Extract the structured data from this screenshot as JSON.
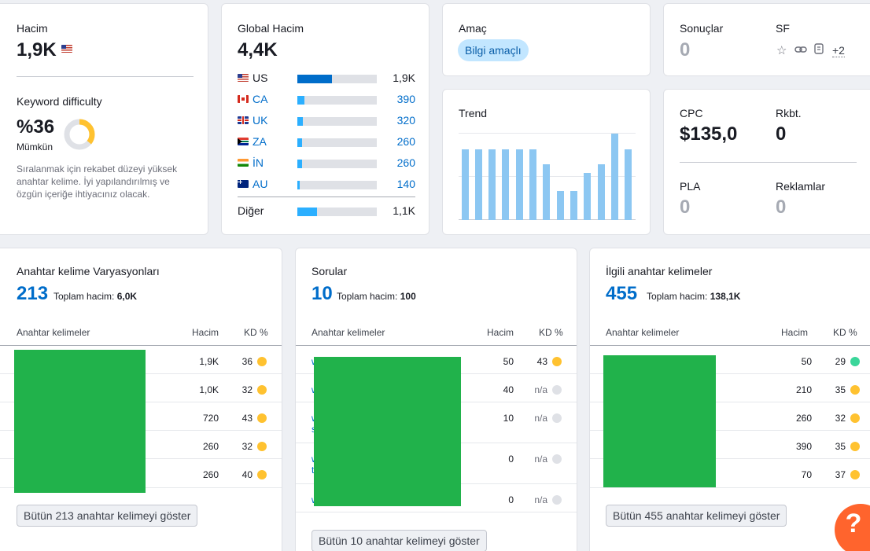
{
  "volume": {
    "label": "Hacim",
    "value": "1,9K",
    "flag": "us-flag-icon"
  },
  "kd": {
    "label": "Keyword difficulty",
    "value": "%36",
    "level": "Mümkün",
    "percent": 36,
    "description": "Sıralanmak için rekabet düzeyi yüksek anahtar kelime. İyi yapılandırılmış ve özgün içeriğe ihtiyacınız olacak.",
    "color": "#ffc230"
  },
  "global": {
    "label": "Global Hacim",
    "value": "4,4K",
    "countries": [
      {
        "code": "US",
        "flag": "us",
        "value": "1,9K",
        "share": 0.44
      },
      {
        "code": "CA",
        "flag": "ca",
        "value": "390",
        "share": 0.09
      },
      {
        "code": "UK",
        "flag": "uk",
        "value": "320",
        "share": 0.07
      },
      {
        "code": "ZA",
        "flag": "za",
        "value": "260",
        "share": 0.06
      },
      {
        "code": "İN",
        "flag": "in",
        "value": "260",
        "share": 0.06
      },
      {
        "code": "AU",
        "flag": "au",
        "value": "140",
        "share": 0.03
      }
    ],
    "other": {
      "label": "Diğer",
      "value": "1,1K",
      "share": 0.25
    }
  },
  "intent": {
    "label": "Amaç",
    "badge": "Bilgi amaçlı"
  },
  "results": {
    "label": "Sonuçlar",
    "value": "0",
    "sf_label": "SF",
    "sf_more": "+2"
  },
  "trend": {
    "label": "Trend",
    "values": [
      0.82,
      0.82,
      0.82,
      0.82,
      0.82,
      0.82,
      0.65,
      0.34,
      0.34,
      0.55,
      0.65,
      1.0,
      0.82
    ]
  },
  "cpc": {
    "label": "CPC",
    "value": "$135,0"
  },
  "com": {
    "label": "Rkbt.",
    "value": "0"
  },
  "pla": {
    "label": "PLA",
    "value": "0"
  },
  "ads": {
    "label": "Reklamlar",
    "value": "0"
  },
  "variations": {
    "title": "Anahtar kelime Varyasyonları",
    "count": "213",
    "total_label": "Toplam hacim:",
    "total": "6,0K",
    "col_kw": "Anahtar kelimeler",
    "col_vol": "Hacim",
    "col_kd": "KD %",
    "rows": [
      {
        "vol": "1,9K",
        "kd": "36",
        "dot": "yellow"
      },
      {
        "vol": "1,0K",
        "kd": "32",
        "dot": "yellow"
      },
      {
        "vol": "720",
        "kd": "43",
        "dot": "yellow"
      },
      {
        "vol": "260",
        "kd": "32",
        "dot": "yellow"
      },
      {
        "vol": "260",
        "kd": "40",
        "dot": "yellow"
      }
    ],
    "button": "Bütün 213 anahtar kelimeyi göster"
  },
  "questions": {
    "title": "Sorular",
    "count": "10",
    "total_label": "Toplam hacim:",
    "total": "100",
    "col_kw": "Anahtar kelimeler",
    "col_vol": "Hacim",
    "col_kd": "KD %",
    "rows": [
      {
        "kw": "w",
        "vol": "50",
        "kd": "43",
        "dot": "yellow"
      },
      {
        "kw": "w",
        "vol": "40",
        "kd": "n/a",
        "dot": "gray"
      },
      {
        "kw": "w",
        "kw2": "s",
        "vol": "10",
        "kd": "n/a",
        "dot": "gray"
      },
      {
        "kw": "w",
        "kw2": "t",
        "vol": "0",
        "kd": "n/a",
        "dot": "gray"
      },
      {
        "kw": "w",
        "vol": "0",
        "kd": "n/a",
        "dot": "gray"
      }
    ],
    "button": "Bütün 10 anahtar kelimeyi göster"
  },
  "related": {
    "title": "İlgili anahtar kelimeler",
    "count": "455",
    "total_label": "Toplam hacim:",
    "total": "138,1K",
    "col_kw": "Anahtar kelimeler",
    "col_vol": "Hacim",
    "col_kd": "KD %",
    "rows": [
      {
        "vol": "50",
        "kd": "29",
        "dot": "green"
      },
      {
        "vol": "210",
        "kd": "35",
        "dot": "yellow"
      },
      {
        "vol": "260",
        "kd": "32",
        "dot": "yellow"
      },
      {
        "vol": "390",
        "kd": "35",
        "dot": "yellow"
      },
      {
        "vol": "70",
        "kd": "37",
        "dot": "yellow"
      }
    ],
    "button": "Bütün 455 anahtar kelimeyi göster"
  },
  "help": {
    "label": "?"
  }
}
